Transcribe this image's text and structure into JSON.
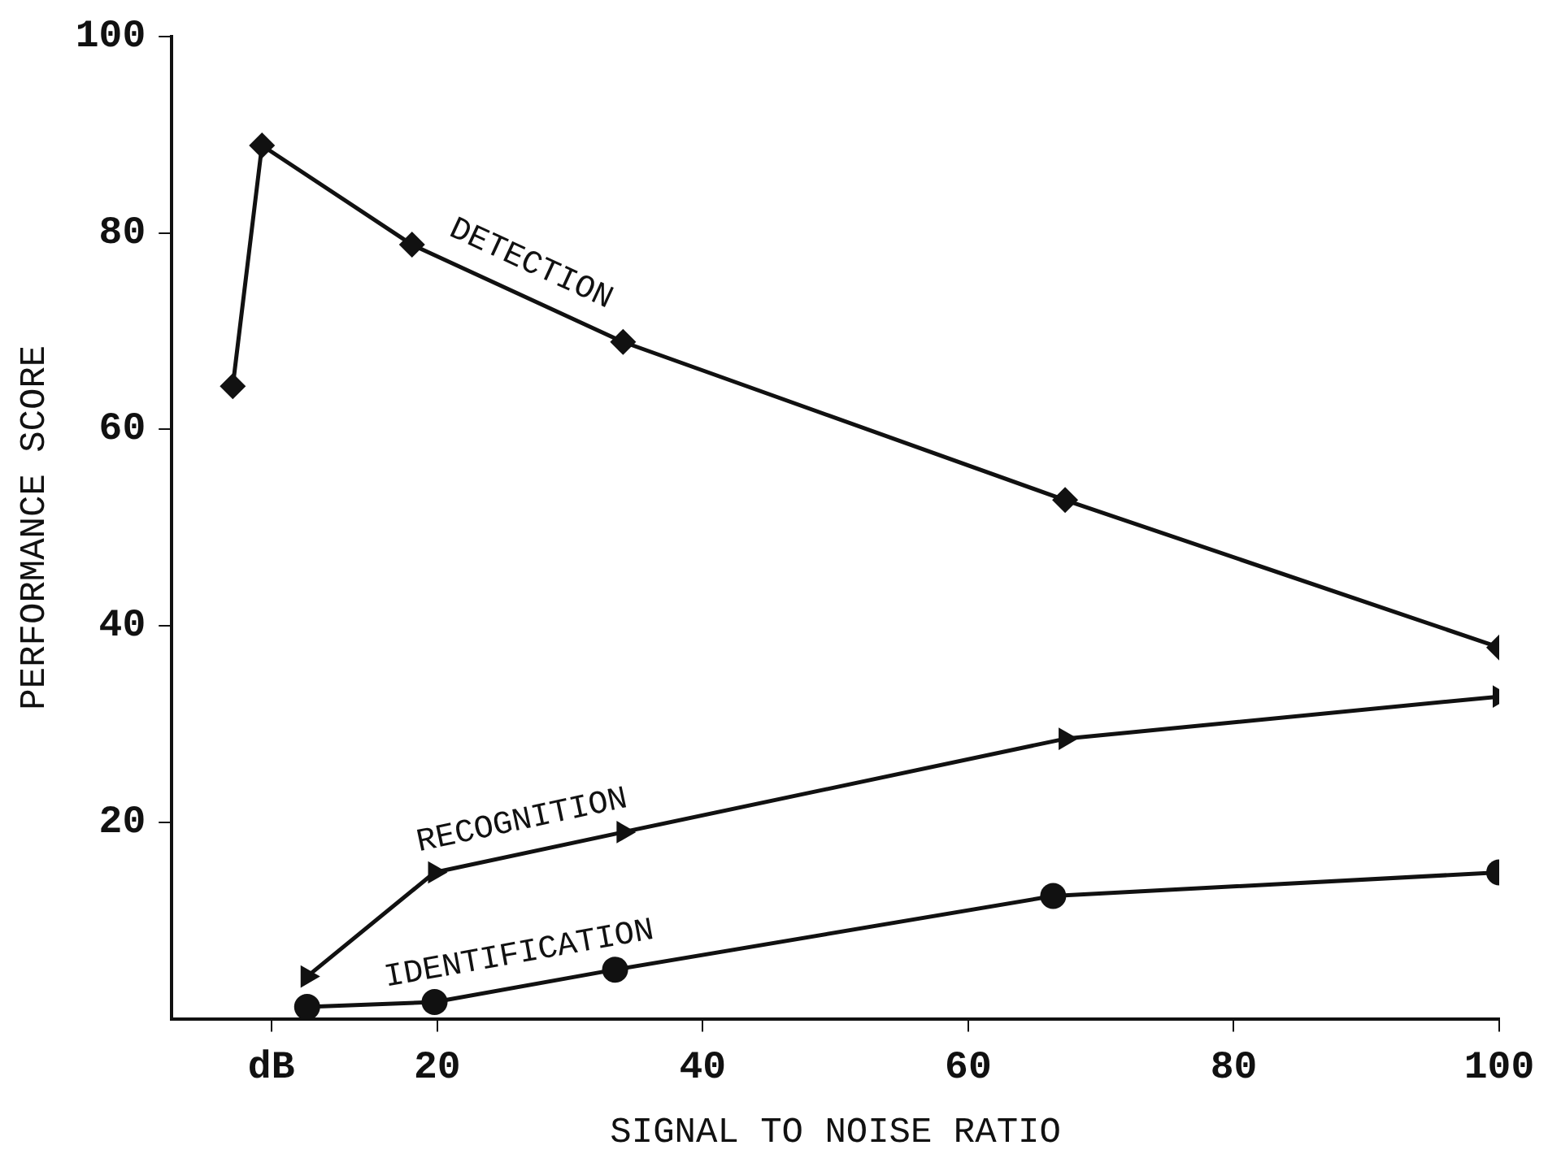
{
  "chart_data": {
    "type": "line",
    "xlabel": "SIGNAL TO NOISE RATIO",
    "ylabel": "PERFORMANCE SCORE",
    "xlim": [
      0,
      100
    ],
    "xticks": [
      {
        "value": 7.5,
        "label": "dB"
      },
      20,
      40,
      60,
      80,
      100
    ],
    "ylim": [
      0,
      100
    ],
    "yticks": [
      20,
      40,
      60,
      80,
      100
    ],
    "grid": false,
    "legend": false,
    "line_style": "solid",
    "series": [
      {
        "name": "DETECTION",
        "color": "#111111",
        "marker": "diamond",
        "x": [
          4.6,
          6.8,
          18.1,
          34,
          67.3,
          100
        ],
        "values": [
          64.4,
          88.9,
          78.8,
          68.9,
          52.8,
          37.8
        ]
      },
      {
        "name": "RECOGNITION",
        "color": "#111111",
        "marker": "triangle",
        "x": [
          10.2,
          19.8,
          34,
          67.3,
          100
        ],
        "values": [
          4.3,
          14.9,
          19,
          28.5,
          32.8
        ]
      },
      {
        "name": "IDENTIFICATION",
        "color": "#111111",
        "marker": "circle",
        "x": [
          10.2,
          19.8,
          33.4,
          66.4,
          100
        ],
        "values": [
          1.2,
          1.7,
          5,
          12.5,
          14.9
        ]
      }
    ]
  }
}
